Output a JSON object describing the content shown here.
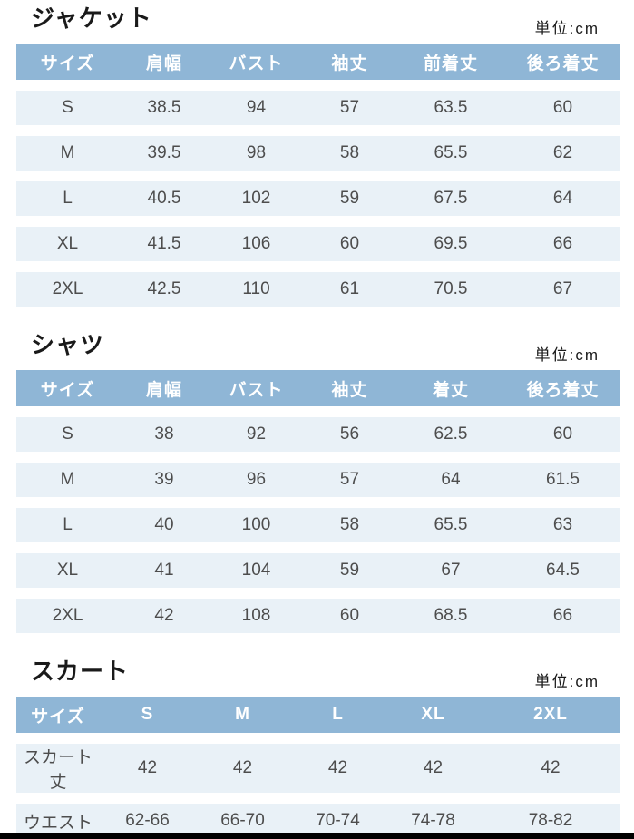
{
  "sections": [
    {
      "title": "ジャケット",
      "unit": "単位:cm",
      "columns": [
        "サイズ",
        "肩幅",
        "バスト",
        "袖丈",
        "前着丈",
        "後ろ着丈"
      ],
      "rows": [
        [
          "S",
          "38.5",
          "94",
          "57",
          "63.5",
          "60"
        ],
        [
          "M",
          "39.5",
          "98",
          "58",
          "65.5",
          "62"
        ],
        [
          "L",
          "40.5",
          "102",
          "59",
          "67.5",
          "64"
        ],
        [
          "XL",
          "41.5",
          "106",
          "60",
          "69.5",
          "66"
        ],
        [
          "2XL",
          "42.5",
          "110",
          "61",
          "70.5",
          "67"
        ]
      ]
    },
    {
      "title": "シャツ",
      "unit": "単位:cm",
      "columns": [
        "サイズ",
        "肩幅",
        "バスト",
        "袖丈",
        "着丈",
        "後ろ着丈"
      ],
      "rows": [
        [
          "S",
          "38",
          "92",
          "56",
          "62.5",
          "60"
        ],
        [
          "M",
          "39",
          "96",
          "57",
          "64",
          "61.5"
        ],
        [
          "L",
          "40",
          "100",
          "58",
          "65.5",
          "63"
        ],
        [
          "XL",
          "41",
          "104",
          "59",
          "67",
          "64.5"
        ],
        [
          "2XL",
          "42",
          "108",
          "60",
          "68.5",
          "66"
        ]
      ]
    },
    {
      "title": "スカート",
      "unit": "単位:cm",
      "columns": [
        "サイズ",
        "S",
        "M",
        "L",
        "XL",
        "2XL"
      ],
      "rows": [
        [
          "スカート丈",
          "42",
          "42",
          "42",
          "42",
          "42"
        ],
        [
          "ウエスト",
          "62-66",
          "66-70",
          "70-74",
          "74-78",
          "78-82"
        ]
      ]
    }
  ],
  "colors": {
    "header_bg": "#8fb6d6",
    "header_text": "#ffffff",
    "row_bg": "#e9f1f7",
    "cell_text": "#4d4d4d",
    "title_text": "#1a1a1a",
    "bottom_bar": "#000000"
  }
}
